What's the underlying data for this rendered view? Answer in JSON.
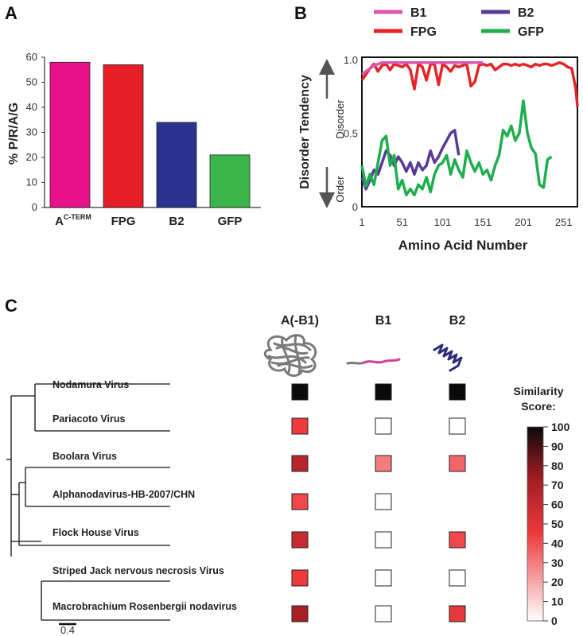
{
  "panels": {
    "a": "A",
    "b": "B",
    "c": "C"
  },
  "panel_a": {
    "chart_data": {
      "type": "bar",
      "ylabel": "% P/R/A/G",
      "ylim": [
        0,
        60
      ],
      "yticks": [
        "0",
        "10",
        "20",
        "30",
        "40",
        "50",
        "60"
      ],
      "categories": [
        "A",
        "FPG",
        "B2",
        "GFP"
      ],
      "category_superscript": "C-TERM",
      "values": [
        58,
        57,
        34,
        21
      ],
      "colors": [
        "#e8108b",
        "#e61e26",
        "#29338f",
        "#3bb54a"
      ]
    }
  },
  "panel_b": {
    "chart_data": {
      "type": "line",
      "ylabel": "Disorder Tendency",
      "xlabel": "Amino Acid Number",
      "ylim": [
        0,
        1.0
      ],
      "xlim": [
        1,
        268
      ],
      "yticks": [
        "0",
        "0.5",
        "1.0"
      ],
      "xticks": [
        "1",
        "51",
        "101",
        "151",
        "201",
        "251"
      ],
      "arrow_up_label": "Disorder",
      "arrow_down_label": "Order",
      "legend": [
        {
          "name": "B1",
          "color": "#d55ab0"
        },
        {
          "name": "B2",
          "color": "#5b3a96"
        },
        {
          "name": "FPG",
          "color": "#e42528"
        },
        {
          "name": "GFP",
          "color": "#1fae4f"
        }
      ],
      "series": [
        {
          "name": "FPG",
          "color": "#e42528",
          "x": [
            1,
            6,
            11,
            16,
            21,
            26,
            31,
            36,
            41,
            46,
            51,
            56,
            61,
            66,
            71,
            76,
            81,
            86,
            91,
            96,
            101,
            106,
            111,
            116,
            121,
            126,
            131,
            136,
            141,
            146,
            151,
            156,
            161,
            166,
            171,
            176,
            181,
            186,
            191,
            196,
            201,
            206,
            211,
            216,
            221,
            226,
            231,
            236,
            241,
            246,
            251,
            256,
            261,
            266,
            268
          ],
          "y": [
            0.86,
            0.9,
            0.94,
            0.97,
            0.92,
            0.96,
            0.97,
            0.93,
            0.97,
            0.96,
            0.95,
            0.97,
            0.93,
            0.8,
            0.97,
            0.95,
            0.86,
            0.97,
            0.97,
            0.83,
            0.97,
            0.95,
            0.92,
            0.96,
            0.95,
            0.96,
            0.97,
            0.82,
            0.85,
            0.96,
            0.97,
            0.96,
            0.97,
            0.93,
            0.95,
            0.97,
            0.97,
            0.96,
            0.97,
            0.96,
            0.97,
            0.96,
            0.95,
            0.97,
            0.96,
            0.97,
            0.97,
            0.96,
            0.97,
            0.98,
            0.97,
            0.95,
            0.94,
            0.8,
            0.68
          ]
        },
        {
          "name": "B1",
          "color": "#d55ab0",
          "x": [
            1,
            6,
            11,
            16,
            21,
            26,
            31,
            36,
            41,
            46,
            51,
            56,
            61,
            66,
            71,
            76,
            81,
            86,
            91,
            96,
            101,
            106,
            111,
            116,
            121,
            126,
            131,
            136,
            141,
            146,
            151
          ],
          "y": [
            0.9,
            0.92,
            0.94,
            0.96,
            0.97,
            0.98,
            0.98,
            0.98,
            0.98,
            0.98,
            0.98,
            0.98,
            0.98,
            0.98,
            0.98,
            0.98,
            0.98,
            0.98,
            0.98,
            0.98,
            0.98,
            0.98,
            0.98,
            0.98,
            0.98,
            0.98,
            0.98,
            0.98,
            0.98,
            0.98,
            0.98
          ]
        },
        {
          "name": "B2",
          "color": "#5b3a96",
          "x": [
            1,
            6,
            11,
            16,
            21,
            26,
            31,
            36,
            41,
            46,
            51,
            56,
            61,
            66,
            71,
            76,
            81,
            86,
            91,
            96,
            101,
            106,
            111,
            116,
            121
          ],
          "y": [
            0.2,
            0.12,
            0.18,
            0.25,
            0.22,
            0.3,
            0.38,
            0.35,
            0.28,
            0.34,
            0.3,
            0.24,
            0.3,
            0.22,
            0.3,
            0.25,
            0.28,
            0.38,
            0.3,
            0.34,
            0.4,
            0.45,
            0.5,
            0.52,
            0.35
          ]
        },
        {
          "name": "GFP",
          "color": "#1fae4f",
          "x": [
            1,
            6,
            11,
            16,
            21,
            26,
            31,
            36,
            41,
            46,
            51,
            56,
            61,
            66,
            71,
            76,
            81,
            86,
            91,
            96,
            101,
            106,
            111,
            116,
            121,
            126,
            131,
            136,
            141,
            146,
            151,
            156,
            161,
            166,
            171,
            176,
            181,
            186,
            191,
            196,
            201,
            206,
            211,
            216,
            221,
            226,
            231,
            236
          ],
          "y": [
            0.28,
            0.14,
            0.22,
            0.15,
            0.3,
            0.45,
            0.48,
            0.28,
            0.35,
            0.12,
            0.18,
            0.08,
            0.12,
            0.08,
            0.15,
            0.12,
            0.2,
            0.1,
            0.22,
            0.28,
            0.3,
            0.35,
            0.22,
            0.32,
            0.25,
            0.2,
            0.38,
            0.3,
            0.24,
            0.3,
            0.22,
            0.25,
            0.18,
            0.28,
            0.35,
            0.52,
            0.48,
            0.55,
            0.45,
            0.5,
            0.72,
            0.5,
            0.4,
            0.36,
            0.15,
            0.13,
            0.32,
            0.34
          ]
        }
      ]
    }
  },
  "panel_c": {
    "column_headers": [
      "A(-B1)",
      "B1",
      "B2"
    ],
    "scale_bar_label": "0.4",
    "legend_title_line1": "Similarity",
    "legend_title_line2": "Score:",
    "legend_ticks": [
      "100",
      "90",
      "80",
      "70",
      "60",
      "50",
      "40",
      "30",
      "20",
      "10",
      "0"
    ],
    "rows": [
      {
        "name": "Nodamura Virus",
        "scores": [
          100,
          100,
          100
        ]
      },
      {
        "name": "Pariacoto Virus",
        "scores": [
          45,
          0,
          0
        ]
      },
      {
        "name": "Boolara Virus",
        "scores": [
          65,
          30,
          35
        ]
      },
      {
        "name": "Alphanodavirus-HB-2007/CHN",
        "scores": [
          42,
          0,
          null
        ]
      },
      {
        "name": "Flock House Virus",
        "scores": [
          60,
          0,
          42
        ]
      },
      {
        "name": "Striped Jack nervous necrosis Virus",
        "scores": [
          45,
          0,
          0
        ]
      },
      {
        "name": "Macrobrachium Rosenbergii nodavirus",
        "scores": [
          70,
          0,
          48
        ]
      }
    ]
  }
}
